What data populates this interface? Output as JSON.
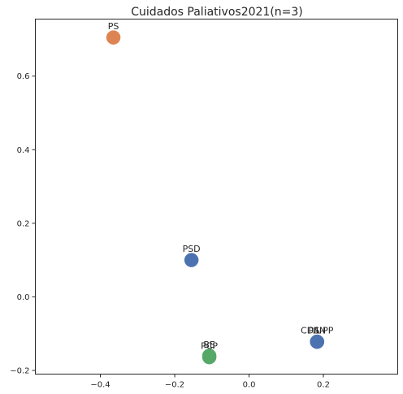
{
  "chart_data": {
    "type": "scatter",
    "title": "Cuidados Paliativos2021(n=3)",
    "xlabel": "",
    "ylabel": "",
    "xlim": [
      -0.575,
      0.4
    ],
    "ylim": [
      -0.21,
      0.755
    ],
    "x_ticks": [
      -0.4,
      -0.2,
      0.0,
      0.2
    ],
    "x_tick_labels": [
      "−0.4",
      "−0.2",
      "0.0",
      "0.2"
    ],
    "y_ticks": [
      -0.2,
      0.0,
      0.2,
      0.4,
      0.6
    ],
    "y_tick_labels": [
      "−0.2",
      "0.0",
      "0.2",
      "0.4",
      "0.6"
    ],
    "grid": false,
    "colors": {
      "blue": "#4c72b0",
      "orange": "#dd8452",
      "green": "#55a868"
    },
    "points": [
      {
        "label": "PS",
        "x": -0.365,
        "y": 0.705,
        "color": "#dd8452"
      },
      {
        "label": "PSD",
        "x": -0.155,
        "y": 0.1,
        "color": "#4c72b0"
      },
      {
        "label": "BE",
        "x": -0.107,
        "y": -0.16,
        "color": "#55a868"
      },
      {
        "label": "PCP",
        "x": -0.107,
        "y": -0.164,
        "color": "#55a868"
      },
      {
        "label": "PAN",
        "x": 0.183,
        "y": -0.122,
        "color": "#4c72b0"
      },
      {
        "label": "IL",
        "x": 0.183,
        "y": -0.122,
        "color": "#4c72b0"
      },
      {
        "label": "CDS-PP",
        "x": 0.183,
        "y": -0.122,
        "color": "#4c72b0"
      }
    ]
  }
}
